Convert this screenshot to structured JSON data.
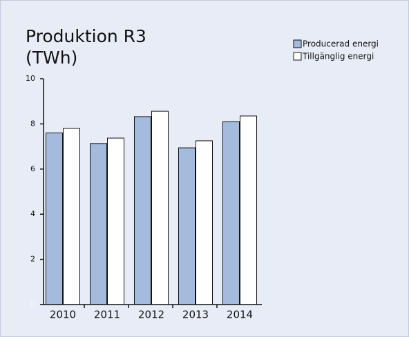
{
  "chart_data": {
    "type": "bar",
    "title": "Produktion R3 (TWh)",
    "categories": [
      "2010",
      "2011",
      "2012",
      "2013",
      "2014"
    ],
    "series": [
      {
        "name": "Producerad energi",
        "color": "#a4bbdd",
        "values": [
          7.6,
          7.13,
          8.32,
          6.94,
          8.1
        ]
      },
      {
        "name": "Tillgänglig energi",
        "color": "#ffffff",
        "values": [
          7.8,
          7.37,
          8.56,
          7.25,
          8.35
        ]
      }
    ],
    "ylim": [
      0,
      10
    ],
    "yticks": [
      0,
      2,
      4,
      6,
      8,
      10
    ],
    "legend": "top-right"
  }
}
